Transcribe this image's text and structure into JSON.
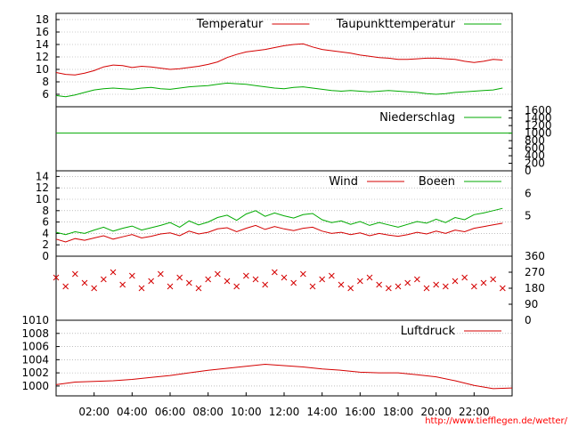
{
  "footer_url": "http://www.tiefflegen.de/wetter/",
  "colors": {
    "red": "#d40000",
    "green": "#00aa00",
    "grid": "#999999",
    "axis": "#000000"
  },
  "chart_data": [
    {
      "type": "line",
      "name": "temperature-panel",
      "ylim": [
        4,
        19
      ],
      "yticks": [
        "6",
        "8",
        "10",
        "12",
        "14",
        "16",
        "18"
      ],
      "grid": true,
      "legend": "top-right",
      "series": [
        {
          "name": "Temperatur",
          "color": "#d40000",
          "x": [
            0,
            0.5,
            1,
            1.5,
            2,
            2.5,
            3,
            3.5,
            4,
            4.5,
            5,
            5.5,
            6,
            6.5,
            7,
            7.5,
            8,
            8.5,
            9,
            9.5,
            10,
            10.5,
            11,
            11.5,
            12,
            12.5,
            13,
            13.5,
            14,
            14.5,
            15,
            15.5,
            16,
            16.5,
            17,
            17.5,
            18,
            18.5,
            19,
            19.5,
            20,
            20.5,
            21,
            21.5,
            22,
            22.5,
            23,
            23.5
          ],
          "values": [
            9.5,
            9.2,
            9.1,
            9.4,
            9.8,
            10.4,
            10.7,
            10.6,
            10.3,
            10.5,
            10.4,
            10.2,
            10.0,
            10.1,
            10.3,
            10.5,
            10.8,
            11.2,
            11.9,
            12.4,
            12.8,
            13.0,
            13.2,
            13.5,
            13.8,
            14.0,
            14.1,
            13.6,
            13.2,
            13.0,
            12.8,
            12.6,
            12.3,
            12.1,
            11.9,
            11.8,
            11.6,
            11.6,
            11.7,
            11.8,
            11.8,
            11.7,
            11.6,
            11.3,
            11.1,
            11.3,
            11.6,
            11.5
          ]
        },
        {
          "name": "Taupunkttemperatur",
          "color": "#00aa00",
          "x": [
            0,
            0.5,
            1,
            1.5,
            2,
            2.5,
            3,
            3.5,
            4,
            4.5,
            5,
            5.5,
            6,
            6.5,
            7,
            7.5,
            8,
            8.5,
            9,
            9.5,
            10,
            10.5,
            11,
            11.5,
            12,
            12.5,
            13,
            13.5,
            14,
            14.5,
            15,
            15.5,
            16,
            16.5,
            17,
            17.5,
            18,
            18.5,
            19,
            19.5,
            20,
            20.5,
            21,
            21.5,
            22,
            22.5,
            23,
            23.5
          ],
          "values": [
            5.8,
            5.6,
            5.9,
            6.3,
            6.7,
            6.9,
            7.0,
            6.9,
            6.8,
            7.0,
            7.1,
            6.9,
            6.8,
            7.0,
            7.2,
            7.3,
            7.4,
            7.6,
            7.8,
            7.7,
            7.6,
            7.4,
            7.2,
            7.0,
            6.9,
            7.1,
            7.2,
            7.0,
            6.8,
            6.6,
            6.5,
            6.6,
            6.5,
            6.4,
            6.5,
            6.6,
            6.5,
            6.4,
            6.3,
            6.1,
            6.0,
            6.1,
            6.3,
            6.4,
            6.5,
            6.6,
            6.7,
            7.0
          ]
        }
      ]
    },
    {
      "type": "line",
      "name": "precipitation-panel",
      "ylim": [
        0,
        1700
      ],
      "yticks": [
        "0",
        "200",
        "400",
        "600",
        "800",
        "1000",
        "1200",
        "1400",
        "1600"
      ],
      "yaxis": "right",
      "legend": "top-right",
      "series": [
        {
          "name": "Niederschlag",
          "color": "#00aa00",
          "x": [
            0,
            24
          ],
          "values": [
            1000,
            1000
          ]
        }
      ]
    },
    {
      "type": "line",
      "name": "wind-panel",
      "ylim": [
        0,
        15
      ],
      "yticks": [
        "0",
        "2",
        "4",
        "6",
        "8",
        "10",
        "12",
        "14"
      ],
      "y2ticks": [
        "5",
        "6"
      ],
      "grid": true,
      "legend": "top-right",
      "series": [
        {
          "name": "Wind",
          "color": "#d40000",
          "x": [
            0,
            0.5,
            1,
            1.5,
            2,
            2.5,
            3,
            3.5,
            4,
            4.5,
            5,
            5.5,
            6,
            6.5,
            7,
            7.5,
            8,
            8.5,
            9,
            9.5,
            10,
            10.5,
            11,
            11.5,
            12,
            12.5,
            13,
            13.5,
            14,
            14.5,
            15,
            15.5,
            16,
            16.5,
            17,
            17.5,
            18,
            18.5,
            19,
            19.5,
            20,
            20.5,
            21,
            21.5,
            22,
            22.5,
            23,
            23.5
          ],
          "values": [
            3.0,
            2.5,
            3.1,
            2.8,
            3.2,
            3.6,
            3.0,
            3.4,
            3.8,
            3.2,
            3.5,
            3.9,
            4.1,
            3.6,
            4.4,
            3.9,
            4.2,
            4.8,
            5.0,
            4.3,
            4.9,
            5.4,
            4.7,
            5.2,
            4.8,
            4.5,
            4.9,
            5.1,
            4.4,
            4.0,
            4.2,
            3.8,
            4.1,
            3.6,
            4.0,
            3.7,
            3.5,
            3.8,
            4.2,
            3.9,
            4.4,
            4.0,
            4.6,
            4.3,
            4.9,
            5.2,
            5.5,
            5.8
          ]
        },
        {
          "name": "Boeen",
          "color": "#00aa00",
          "x": [
            0,
            0.5,
            1,
            1.5,
            2,
            2.5,
            3,
            3.5,
            4,
            4.5,
            5,
            5.5,
            6,
            6.5,
            7,
            7.5,
            8,
            8.5,
            9,
            9.5,
            10,
            10.5,
            11,
            11.5,
            12,
            12.5,
            13,
            13.5,
            14,
            14.5,
            15,
            15.5,
            16,
            16.5,
            17,
            17.5,
            18,
            18.5,
            19,
            19.5,
            20,
            20.5,
            21,
            21.5,
            22,
            22.5,
            23,
            23.5
          ],
          "values": [
            4.2,
            3.8,
            4.3,
            4.0,
            4.6,
            5.1,
            4.4,
            4.9,
            5.3,
            4.6,
            5.0,
            5.4,
            5.9,
            5.1,
            6.2,
            5.5,
            6.0,
            6.8,
            7.2,
            6.3,
            7.4,
            8.0,
            7.0,
            7.6,
            7.1,
            6.7,
            7.3,
            7.5,
            6.4,
            5.9,
            6.2,
            5.6,
            6.1,
            5.4,
            5.9,
            5.5,
            5.1,
            5.6,
            6.1,
            5.8,
            6.5,
            5.9,
            6.8,
            6.4,
            7.3,
            7.6,
            8.0,
            8.4
          ]
        }
      ]
    },
    {
      "type": "scatter",
      "name": "wind-direction-panel",
      "ylim": [
        0,
        360
      ],
      "yticks": [
        "0",
        "90",
        "180",
        "270",
        "360"
      ],
      "yaxis": "right",
      "series": [
        {
          "name": "",
          "color": "#d40000",
          "x": [
            0,
            0.5,
            1,
            1.5,
            2,
            2.5,
            3,
            3.5,
            4,
            4.5,
            5,
            5.5,
            6,
            6.5,
            7,
            7.5,
            8,
            8.5,
            9,
            9.5,
            10,
            10.5,
            11,
            11.5,
            12,
            12.5,
            13,
            13.5,
            14,
            14.5,
            15,
            15.5,
            16,
            16.5,
            17,
            17.5,
            18,
            18.5,
            19,
            19.5,
            20,
            20.5,
            21,
            21.5,
            22,
            22.5,
            23,
            23.5
          ],
          "values": [
            240,
            190,
            260,
            210,
            180,
            230,
            270,
            200,
            250,
            180,
            220,
            260,
            190,
            240,
            210,
            180,
            230,
            260,
            220,
            190,
            250,
            230,
            200,
            270,
            240,
            210,
            260,
            190,
            230,
            250,
            200,
            180,
            220,
            240,
            200,
            180,
            190,
            210,
            230,
            180,
            200,
            190,
            220,
            240,
            190,
            210,
            230,
            180
          ]
        }
      ]
    },
    {
      "type": "line",
      "name": "pressure-panel",
      "ylim": [
        998.5,
        1010
      ],
      "yticks": [
        "1000",
        "1002",
        "1004",
        "1006",
        "1008",
        "1010"
      ],
      "grid": true,
      "legend": "top-right",
      "xticks": [
        "02:00",
        "04:00",
        "06:00",
        "08:00",
        "10:00",
        "12:00",
        "14:00",
        "16:00",
        "18:00",
        "20:00",
        "22:00"
      ],
      "series": [
        {
          "name": "Luftdruck",
          "color": "#d40000",
          "x": [
            0,
            1,
            2,
            3,
            4,
            5,
            6,
            7,
            8,
            9,
            10,
            11,
            12,
            13,
            14,
            15,
            16,
            17,
            18,
            19,
            20,
            21,
            22,
            23,
            24
          ],
          "values": [
            1000.2,
            1000.6,
            1000.7,
            1000.8,
            1001.0,
            1001.3,
            1001.6,
            1002.0,
            1002.4,
            1002.7,
            1003.0,
            1003.3,
            1003.1,
            1002.9,
            1002.6,
            1002.4,
            1002.1,
            1002.0,
            1002.0,
            1001.7,
            1001.4,
            1000.8,
            1000.1,
            999.6,
            999.7
          ]
        }
      ]
    }
  ]
}
